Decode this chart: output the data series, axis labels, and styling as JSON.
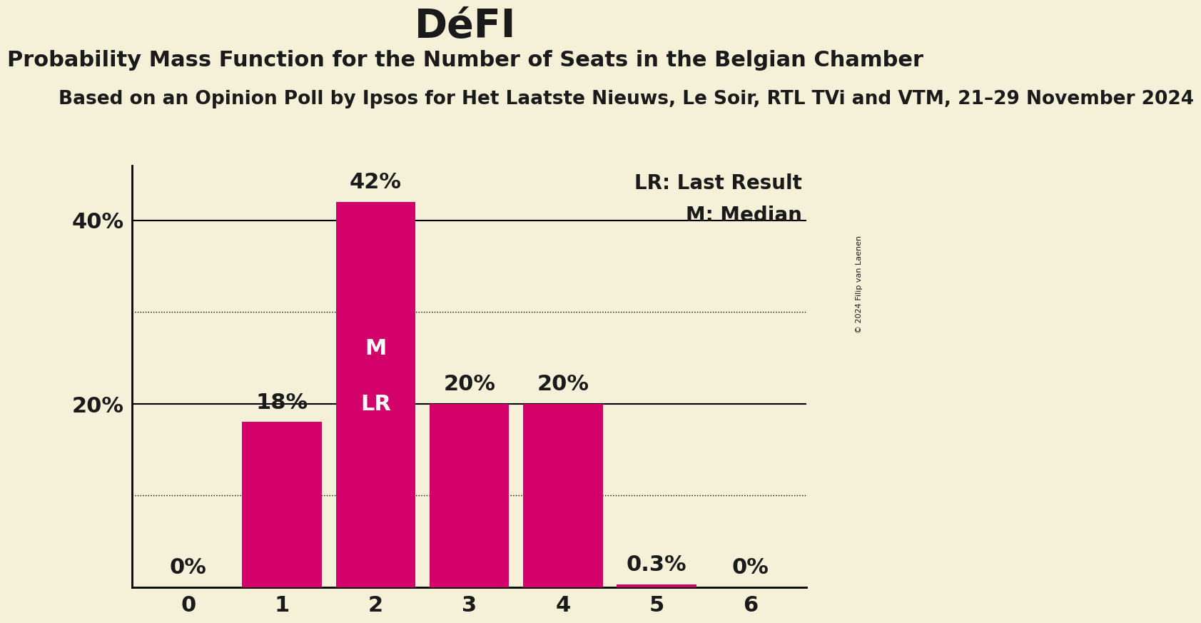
{
  "title": "DéFI",
  "subtitle1": "Probability Mass Function for the Number of Seats in the Belgian Chamber",
  "subtitle2": "Based on an Opinion Poll by Ipsos for Het Laatste Nieuws, Le Soir, RTL TVi and VTM, 21–29 November 2024",
  "copyright_text": "© 2024 Filip van Laenen",
  "categories": [
    0,
    1,
    2,
    3,
    4,
    5,
    6
  ],
  "values": [
    0.0,
    18.0,
    42.0,
    20.0,
    20.0,
    0.3,
    0.0
  ],
  "value_labels": [
    "0%",
    "18%",
    "42%",
    "20%",
    "20%",
    "0.3%",
    "0%"
  ],
  "bar_color": "#D4006A",
  "background_color": "#F5F0D8",
  "text_color": "#1A1A1A",
  "ylim": [
    0,
    46
  ],
  "solid_gridlines": [
    20,
    40
  ],
  "dotted_gridlines": [
    10,
    30
  ],
  "median_bar": 2,
  "last_result_bar": 2,
  "legend_lr": "LR: Last Result",
  "legend_m": "M: Median",
  "bar_label_fontsize": 22,
  "axis_tick_fontsize": 22,
  "title_fontsize": 40,
  "subtitle1_fontsize": 22,
  "subtitle2_fontsize": 19,
  "ml_fontsize": 22,
  "legend_fontsize": 20
}
